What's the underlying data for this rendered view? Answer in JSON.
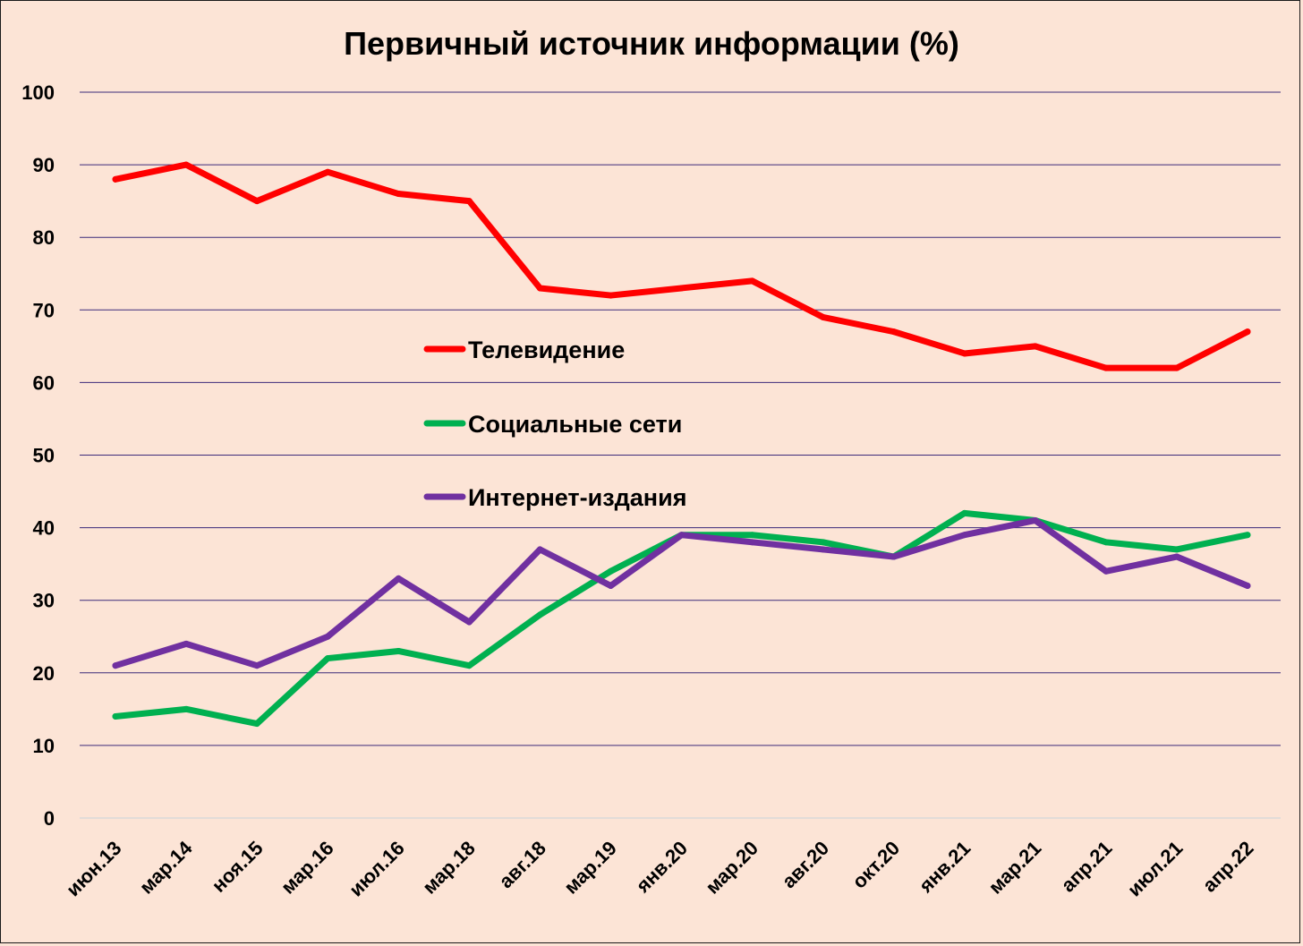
{
  "chart_data": {
    "type": "line",
    "title": "Первичный источник информации (%)",
    "xlabel": "",
    "ylabel": "",
    "ylim": [
      0,
      100
    ],
    "yticks": [
      0,
      10,
      20,
      30,
      40,
      50,
      60,
      70,
      80,
      90,
      100
    ],
    "grid": true,
    "legend_position": "center",
    "categories": [
      "июн.13",
      "мар.14",
      "ноя.15",
      "мар.16",
      "июл.16",
      "мар.18",
      "авг.18",
      "мар.19",
      "янв.20",
      "мар.20",
      "авг.20",
      "окт.20",
      "янв.21",
      "мар.21",
      "апр.21",
      "июл.21",
      "апр.22"
    ],
    "series": [
      {
        "name": "Телевидение",
        "color": "#ff0000",
        "values": [
          88,
          90,
          85,
          89,
          86,
          85,
          73,
          72,
          73,
          74,
          69,
          67,
          64,
          65,
          62,
          62,
          67
        ]
      },
      {
        "name": "Социальные сети",
        "color": "#00b050",
        "values": [
          14,
          15,
          13,
          22,
          23,
          21,
          28,
          34,
          39,
          39,
          38,
          36,
          42,
          41,
          38,
          37,
          39
        ]
      },
      {
        "name": "Интернет-издания",
        "color": "#7030a0",
        "values": [
          21,
          24,
          21,
          25,
          33,
          27,
          37,
          32,
          39,
          38,
          37,
          36,
          39,
          41,
          34,
          36,
          32
        ]
      }
    ]
  }
}
